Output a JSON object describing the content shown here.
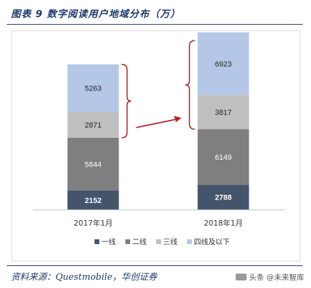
{
  "title": "图表 9   数字阅读用户地域分布（万）",
  "source": "资料来源：Questmobile，华创证券",
  "watermark": "头条 @未来智库",
  "colors": {
    "title": "#1f3a6b",
    "arrow": "#b22222",
    "axis": "#bfbfbf"
  },
  "chart_data": {
    "type": "bar",
    "stacked": true,
    "categories": [
      "2017年1月",
      "2018年1月"
    ],
    "series": [
      {
        "name": "一线",
        "values": [
          2152,
          2788
        ],
        "color": "#44546a",
        "label_color": "#ffffff"
      },
      {
        "name": "二线",
        "values": [
          5844,
          6149
        ],
        "color": "#7f7f7f",
        "label_color": "#ffffff"
      },
      {
        "name": "三线",
        "values": [
          2871,
          3817
        ],
        "color": "#bfbfbf",
        "label_color": "#222222"
      },
      {
        "name": "四线及以下",
        "values": [
          5263,
          6923
        ],
        "color": "#b4c7e7",
        "label_color": "#222222"
      }
    ],
    "ylim": [
      0,
      20000
    ],
    "legend_position": "bottom",
    "grid": false,
    "annotations": {
      "brackets": "around series 三线 + 四线及以下 in each bar",
      "arrow": "from 2017年1月 bracket to 2018年1月 bracket"
    }
  }
}
